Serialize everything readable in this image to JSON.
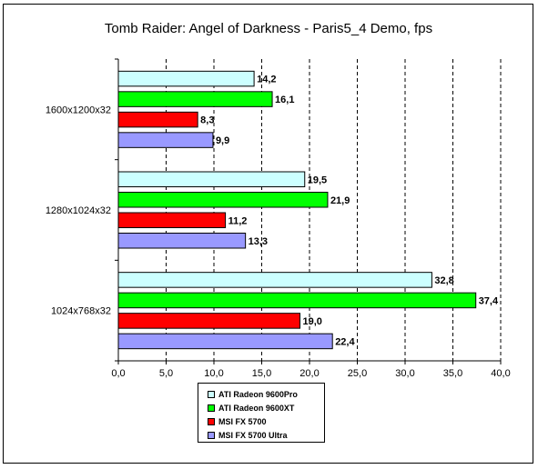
{
  "chart_data": {
    "type": "bar",
    "orientation": "horizontal",
    "title": "Tomb Raider: Angel of Darkness - Paris5_4 Demo, fps",
    "categories": [
      "1600x1200x32",
      "1280x1024x32",
      "1024x768x32"
    ],
    "series": [
      {
        "name": "ATI Radeon 9600Pro",
        "color": "#ccffff",
        "values": [
          14.2,
          19.5,
          32.8
        ],
        "labels": [
          "14,2",
          "19,5",
          "32,8"
        ]
      },
      {
        "name": "ATI Radeon 9600XT",
        "color": "#00ff00",
        "values": [
          16.1,
          21.9,
          37.4
        ],
        "labels": [
          "16,1",
          "21,9",
          "37,4"
        ]
      },
      {
        "name": "MSI FX 5700",
        "color": "#ff0000",
        "values": [
          8.3,
          11.2,
          19.0
        ],
        "labels": [
          "8,3",
          "11,2",
          "19,0"
        ]
      },
      {
        "name": "MSI FX 5700 Ultra",
        "color": "#9999ff",
        "values": [
          9.9,
          13.3,
          22.4
        ],
        "labels": [
          "9,9",
          "13,3",
          "22,4"
        ]
      }
    ],
    "xlim": [
      0,
      40
    ],
    "xticks": [
      "0,0",
      "5,0",
      "10,0",
      "15,0",
      "20,0",
      "25,0",
      "30,0",
      "35,0",
      "40,0"
    ],
    "grid": true,
    "legend_position": "bottom"
  }
}
